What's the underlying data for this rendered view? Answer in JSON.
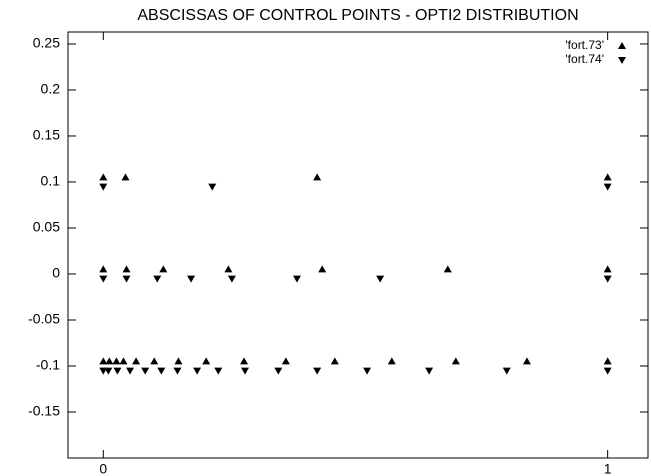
{
  "chart_data": {
    "type": "scatter",
    "title": "ABSCISSAS OF CONTROL POINTS - OPTI2 DISTRIBUTION",
    "xlim": [
      -0.07,
      1.08
    ],
    "xticks": [
      0,
      1
    ],
    "ylim": [
      -0.2,
      0.263
    ],
    "yticks": [
      -0.15,
      -0.1,
      -0.05,
      0,
      0.05,
      0.1,
      0.15,
      0.2,
      0.25
    ],
    "legend": "upper right",
    "series": [
      {
        "name": "'fort.73'",
        "color": "#000000",
        "marker": "triangle-up",
        "x": [
          0,
          0.012,
          0.026,
          0.04,
          0.065,
          0.101,
          0.149,
          0.204,
          0.279,
          0.362,
          0.459,
          0.572,
          0.699,
          0.84,
          1,
          0,
          0.046,
          0.119,
          0.248,
          0.434,
          0.683,
          1,
          0,
          0.044,
          0.424,
          1
        ],
        "values": [
          -0.095,
          -0.095,
          -0.095,
          -0.095,
          -0.095,
          -0.095,
          -0.095,
          -0.095,
          -0.095,
          -0.095,
          -0.095,
          -0.095,
          -0.095,
          -0.095,
          -0.095,
          0.005,
          0.005,
          0.005,
          0.005,
          0.005,
          0.005,
          0.005,
          0.105,
          0.105,
          0.105,
          0.105
        ]
      },
      {
        "name": "'fort.74'",
        "color": "#000000",
        "marker": "triangle-down",
        "x": [
          0,
          0.01,
          0.028,
          0.053,
          0.083,
          0.115,
          0.147,
          0.186,
          0.228,
          0.281,
          0.347,
          0.424,
          0.523,
          0.646,
          0.8,
          1,
          0,
          0.046,
          0.107,
          0.174,
          0.255,
          0.384,
          0.549,
          1,
          0,
          0.216,
          1
        ],
        "values": [
          -0.105,
          -0.105,
          -0.105,
          -0.105,
          -0.105,
          -0.105,
          -0.105,
          -0.105,
          -0.105,
          -0.105,
          -0.105,
          -0.105,
          -0.105,
          -0.105,
          -0.105,
          -0.105,
          -0.005,
          -0.005,
          -0.005,
          -0.005,
          -0.005,
          -0.005,
          -0.005,
          -0.005,
          0.095,
          0.095,
          0.095
        ]
      }
    ]
  }
}
